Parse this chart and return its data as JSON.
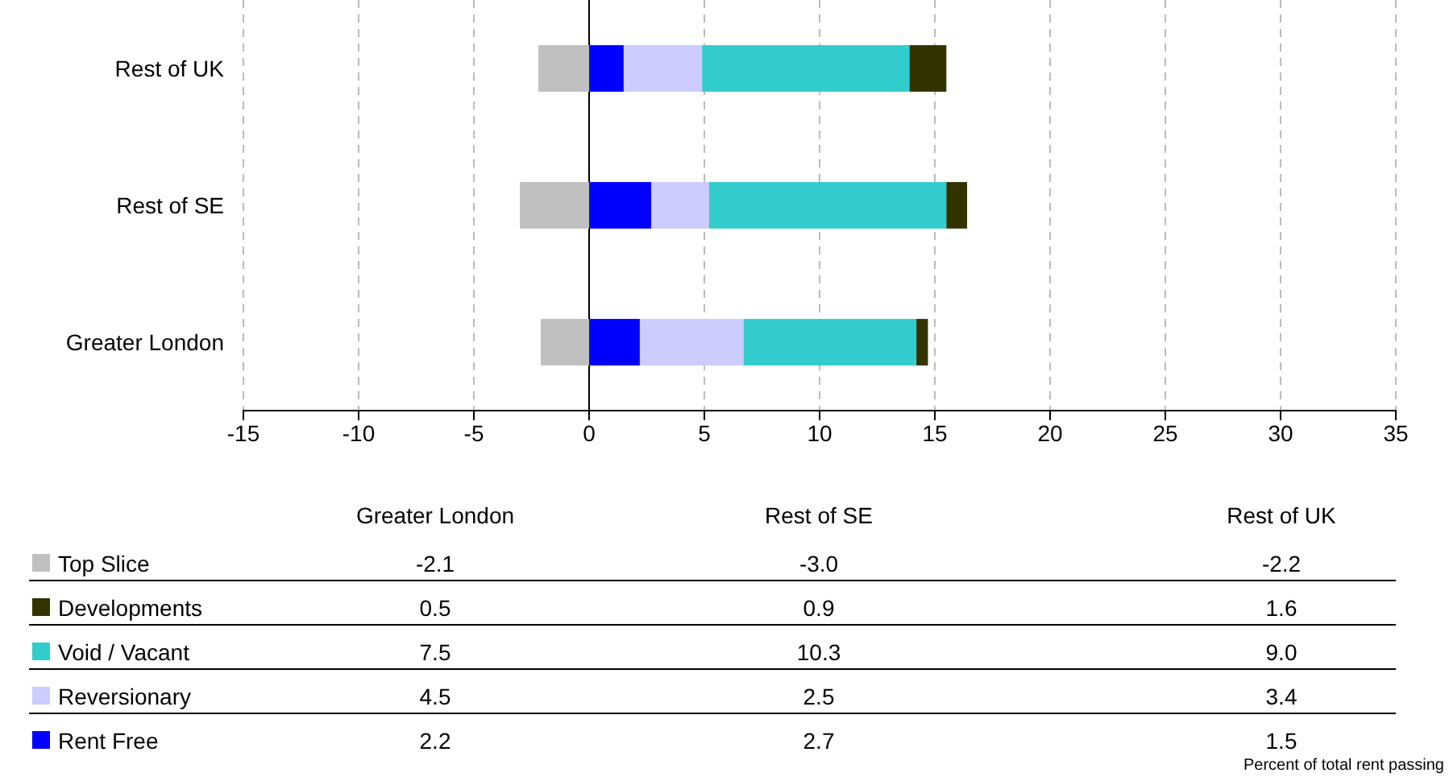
{
  "chart_data": {
    "type": "bar",
    "orientation": "horizontal",
    "stacked": true,
    "categories": [
      "Rest of UK",
      "Rest of SE",
      "Greater London"
    ],
    "series": [
      {
        "name": "Rent Free",
        "color": "#0000ff",
        "values": [
          1.5,
          2.7,
          2.2
        ]
      },
      {
        "name": "Reversionary",
        "color": "#ccccff",
        "values": [
          3.4,
          2.5,
          4.5
        ]
      },
      {
        "name": "Void / Vacant",
        "color": "#33cccc",
        "values": [
          9.0,
          10.3,
          7.5
        ]
      },
      {
        "name": "Developments",
        "color": "#333300",
        "values": [
          1.6,
          0.9,
          0.5
        ]
      },
      {
        "name": "Top Slice",
        "color": "#c0c0c0",
        "values": [
          -2.2,
          -3.0,
          -2.1
        ]
      }
    ],
    "xlim": [
      -15,
      35
    ],
    "xticks": [
      -15,
      -10,
      -5,
      0,
      5,
      10,
      15,
      20,
      25,
      30,
      35
    ],
    "grid": "x",
    "legend": "bottom",
    "annotations": [
      "-2.1",
      "-3.0",
      "-2.2",
      "0.5",
      "0.9",
      "1.6",
      "7.5",
      "10.3",
      "9.0",
      "4.5",
      "2.5",
      "3.4",
      "2.2",
      "2.7",
      "1.5",
      "Percent of total rent passing"
    ]
  }
}
